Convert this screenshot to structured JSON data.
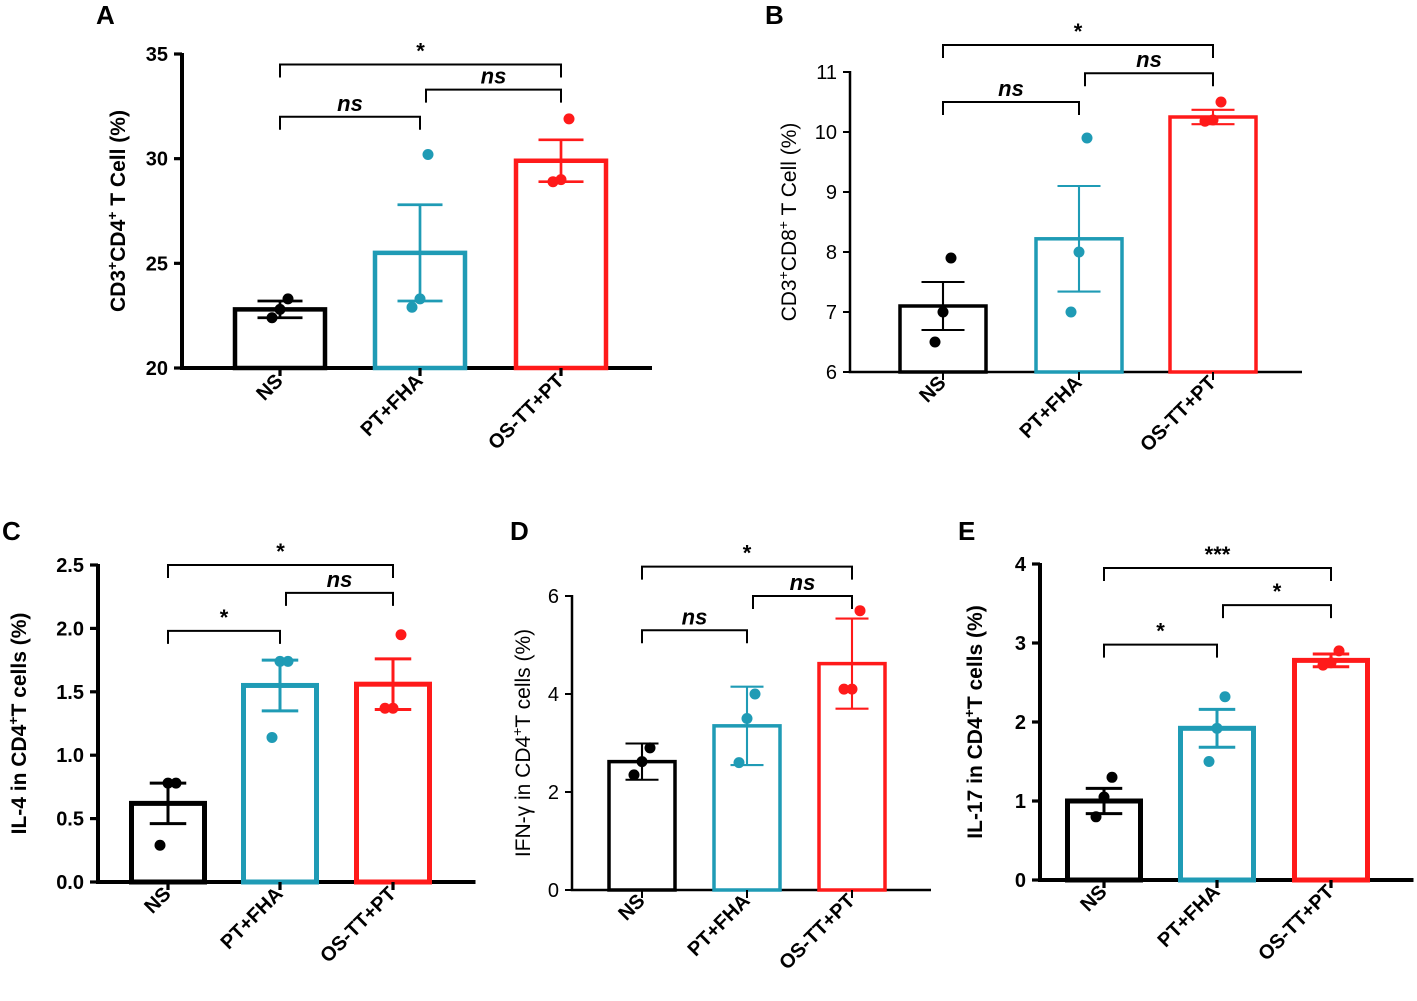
{
  "colors": {
    "NS": "#000000",
    "PT+FHA": "#1f9bb5",
    "OS-TT+PT": "#ff1a1a",
    "axis": "#000000"
  },
  "chart_data": [
    {
      "panel": "A",
      "type": "bar",
      "ylabel": "CD3⁺CD4⁺ T Cell (%)",
      "ylim": [
        20,
        35
      ],
      "yticks": [
        20,
        25,
        30,
        35
      ],
      "categories": [
        "NS",
        "PT+FHA",
        "OS-TT+PT"
      ],
      "values": [
        22.8,
        25.5,
        29.9
      ],
      "errors": [
        0.4,
        2.3,
        1.0
      ],
      "points": [
        [
          22.4,
          22.8,
          23.3
        ],
        [
          22.9,
          23.3,
          30.2
        ],
        [
          28.9,
          29.0,
          31.9
        ]
      ],
      "comparisons": [
        {
          "a": 0,
          "b": 1,
          "label": "ns",
          "y": 32.0
        },
        {
          "a": 1,
          "b": 2,
          "label": "ns",
          "y": 33.3
        },
        {
          "a": 0,
          "b": 2,
          "label": "*",
          "y": 34.5
        }
      ]
    },
    {
      "panel": "B",
      "type": "bar",
      "ylabel": "CD3⁺CD8⁺ T Cell (%)",
      "ylim": [
        6,
        11
      ],
      "yticks": [
        6,
        7,
        8,
        9,
        10,
        11
      ],
      "categories": [
        "NS",
        "PT+FHA",
        "OS-TT+PT"
      ],
      "values": [
        7.1,
        8.22,
        10.25
      ],
      "errors": [
        0.4,
        0.88,
        0.12
      ],
      "points": [
        [
          6.5,
          7.0,
          7.9
        ],
        [
          7.0,
          8.0,
          9.9
        ],
        [
          10.18,
          10.2,
          10.5
        ]
      ],
      "comparisons": [
        {
          "a": 0,
          "b": 1,
          "label": "ns",
          "y": 10.5
        },
        {
          "a": 1,
          "b": 2,
          "label": "ns",
          "y": 10.98
        },
        {
          "a": 0,
          "b": 2,
          "label": "*",
          "y": 11.45
        }
      ]
    },
    {
      "panel": "C",
      "type": "bar",
      "ylabel": "IL-4 in CD4⁺T cells (%)",
      "ylim": [
        0.0,
        2.5
      ],
      "yticks": [
        0.0,
        0.5,
        1.0,
        1.5,
        2.0,
        2.5
      ],
      "ytick_labels": [
        "0.0",
        "0.5",
        "1.0",
        "1.5",
        "2.0",
        "2.5"
      ],
      "categories": [
        "NS",
        "PT+FHA",
        "OS-TT+PT"
      ],
      "values": [
        0.62,
        1.55,
        1.56
      ],
      "errors": [
        0.16,
        0.2,
        0.2
      ],
      "points": [
        [
          0.29,
          0.78,
          0.78
        ],
        [
          1.14,
          1.74,
          1.74
        ],
        [
          1.37,
          1.37,
          1.95
        ]
      ],
      "comparisons": [
        {
          "a": 0,
          "b": 1,
          "label": "*",
          "y": 1.98
        },
        {
          "a": 1,
          "b": 2,
          "label": "ns",
          "y": 2.28
        },
        {
          "a": 0,
          "b": 2,
          "label": "*",
          "y": 2.5
        }
      ]
    },
    {
      "panel": "D",
      "type": "bar",
      "ylabel": "IFN-γ in CD4⁺T cells (%)",
      "ylim": [
        0,
        6
      ],
      "yticks": [
        0,
        2,
        4,
        6
      ],
      "categories": [
        "NS",
        "PT+FHA",
        "OS-TT+PT"
      ],
      "values": [
        2.62,
        3.35,
        4.62
      ],
      "errors": [
        0.37,
        0.8,
        0.92
      ],
      "points": [
        [
          2.35,
          2.62,
          2.9
        ],
        [
          2.6,
          3.5,
          4.0
        ],
        [
          4.1,
          4.1,
          5.7
        ]
      ],
      "comparisons": [
        {
          "a": 0,
          "b": 1,
          "label": "ns",
          "y": 5.3
        },
        {
          "a": 1,
          "b": 2,
          "label": "ns",
          "y": 6.0
        },
        {
          "a": 0,
          "b": 2,
          "label": "*",
          "y": 6.6
        }
      ]
    },
    {
      "panel": "E",
      "type": "bar",
      "ylabel": "IL-17 in CD4⁺T cells (%)",
      "ylim": [
        0,
        4
      ],
      "yticks": [
        0,
        1,
        2,
        3,
        4
      ],
      "categories": [
        "NS",
        "PT+FHA",
        "OS-TT+PT"
      ],
      "values": [
        1.0,
        1.92,
        2.78
      ],
      "errors": [
        0.16,
        0.24,
        0.08
      ],
      "points": [
        [
          0.8,
          1.05,
          1.3
        ],
        [
          1.5,
          1.92,
          2.32
        ],
        [
          2.72,
          2.75,
          2.9
        ]
      ],
      "comparisons": [
        {
          "a": 0,
          "b": 1,
          "label": "*",
          "y": 2.98
        },
        {
          "a": 1,
          "b": 2,
          "label": "*",
          "y": 3.48
        },
        {
          "a": 0,
          "b": 2,
          "label": "***",
          "y": 3.95
        }
      ]
    }
  ]
}
